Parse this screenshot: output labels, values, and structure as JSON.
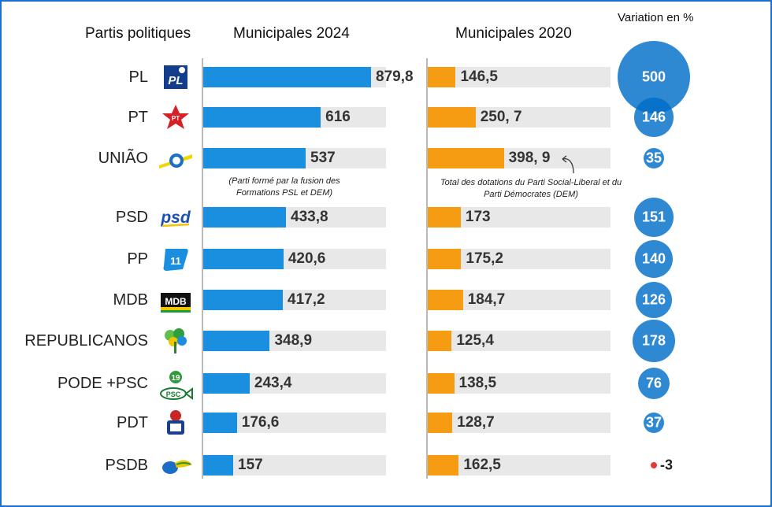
{
  "headers": {
    "parties": "Partis politiques",
    "municipales_2024": "Municipales  2024",
    "municipales_2020": "Municipales  2020",
    "variation": "Variation en %"
  },
  "notes": {
    "uniao_2024": "(Parti formé par la fusion des Formations PSL et DEM)",
    "uniao_2020": "Total des dotations du Parti Social-Liberal et du Parti Démocrates (DEM)"
  },
  "colors": {
    "bar_2024": "#1a8fdf",
    "bar_2020": "#f59c12",
    "track": "#e8e8e8",
    "bubble": "#0a6ec8",
    "negative_dot": "#e53935"
  },
  "chart_data": {
    "type": "bar",
    "categories": [
      "PL",
      "PT",
      "UNIÃO",
      "PSD",
      "PP",
      "MDB",
      "REPUBLICANOS",
      "PODE +PSC",
      "PDT",
      "PSDB"
    ],
    "series": [
      {
        "name": "Municipales 2024",
        "values": [
          879.8,
          616,
          537,
          433.8,
          420.6,
          417.2,
          348.9,
          243.4,
          176.6,
          157
        ],
        "labels": [
          "879,8",
          "616",
          "537",
          "433,8",
          "420,6",
          "417,2",
          "348,9",
          "243,4",
          "176,6",
          "157"
        ]
      },
      {
        "name": "Municipales 2020",
        "values": [
          146.5,
          250.7,
          398.9,
          173,
          175.2,
          184.7,
          125.4,
          138.5,
          128.7,
          162.5
        ],
        "labels": [
          "146,5",
          "250, 7",
          "398, 9",
          "173",
          "175,2",
          "184,7",
          "125,4",
          "138,5",
          "128,7",
          "162,5"
        ]
      },
      {
        "name": "Variation en %",
        "values": [
          500,
          146,
          35,
          151,
          140,
          126,
          178,
          76,
          37,
          -3
        ],
        "labels": [
          "500",
          "146",
          "35",
          "151",
          "140",
          "126",
          "178",
          "76",
          "37",
          "-3"
        ]
      }
    ],
    "title": "",
    "xlim": [
      0,
      950
    ]
  },
  "logos": [
    "pl-logo-icon",
    "pt-star-icon",
    "uniao-logo-icon",
    "psd-logo-icon",
    "pp-logo-icon",
    "mdb-logo-icon",
    "republicanos-tree-icon",
    "pode-psc-logo-icon",
    "pdt-logo-icon",
    "psdb-toucan-icon"
  ],
  "logo_text": {
    "pl": "PL",
    "pt": "PT",
    "psd": "psd",
    "pp": "11",
    "mdb": "MDB",
    "pode": "19",
    "psc": "PSC"
  }
}
